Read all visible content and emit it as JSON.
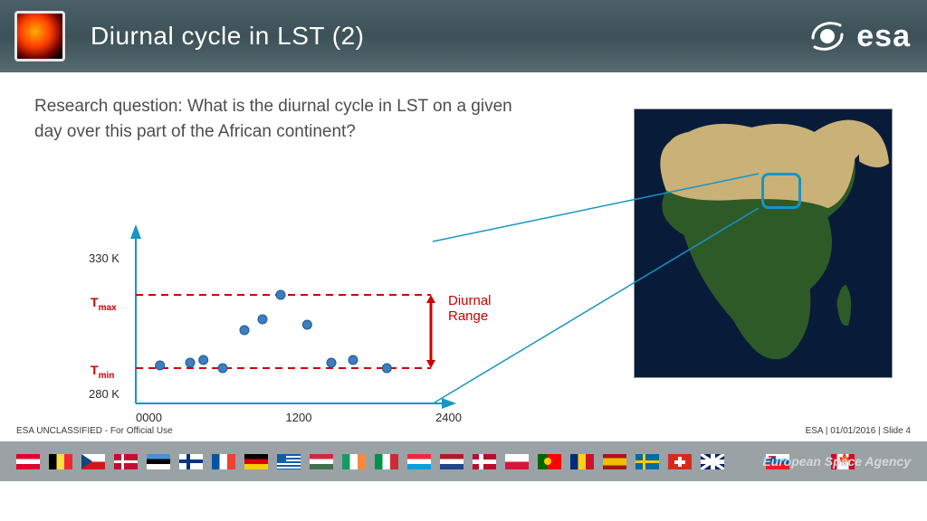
{
  "header": {
    "title": "Diurnal cycle in LST (2)",
    "logo_text": "esa"
  },
  "question": "Research question: What is the diurnal cycle in LST on a given day over this part of the African continent?",
  "chart": {
    "type": "scatter",
    "axis_color": "#1795c4",
    "dash_color": "#cc0000",
    "marker_fill": "#3b7fbf",
    "marker_stroke": "#1f5a94",
    "marker_r": 5,
    "xlim": [
      0,
      2400
    ],
    "ylim": [
      275,
      335
    ],
    "ytick_labels": {
      "top": "330 K",
      "bottom": "280 K"
    },
    "tmax_label": "T",
    "tmax_sub": "max",
    "tmin_label": "T",
    "tmin_sub": "min",
    "xticks": [
      "0000",
      "1200",
      "2400"
    ],
    "tmax_value": 315,
    "tmin_value": 288,
    "diurnal_label_line1": "Diurnal",
    "diurnal_label_line2": "Range",
    "points": [
      {
        "x": 200,
        "y": 289
      },
      {
        "x": 450,
        "y": 290
      },
      {
        "x": 560,
        "y": 291
      },
      {
        "x": 720,
        "y": 288
      },
      {
        "x": 900,
        "y": 302
      },
      {
        "x": 1050,
        "y": 306
      },
      {
        "x": 1200,
        "y": 315
      },
      {
        "x": 1420,
        "y": 304
      },
      {
        "x": 1620,
        "y": 290
      },
      {
        "x": 1800,
        "y": 291
      },
      {
        "x": 2080,
        "y": 288
      }
    ]
  },
  "africa": {
    "ocean": "#081c3a",
    "land_green": "#2d5a27",
    "land_desert": "#c9b178",
    "roi_color": "#1795c4"
  },
  "footer": {
    "left": "ESA UNCLASSIFIED - For Official Use",
    "right": "ESA | 01/01/2016 | Slide  4",
    "agency": "European Space Agency"
  },
  "flags": [
    "at",
    "be",
    "cz",
    "dk",
    "ee",
    "fi",
    "fr",
    "de",
    "gr",
    "hu",
    "ie",
    "it",
    "lu",
    "nl",
    "no",
    "pl",
    "pt",
    "ro",
    "es",
    "se",
    "ch",
    "gb",
    "blank",
    "si",
    "blank",
    "ca"
  ]
}
